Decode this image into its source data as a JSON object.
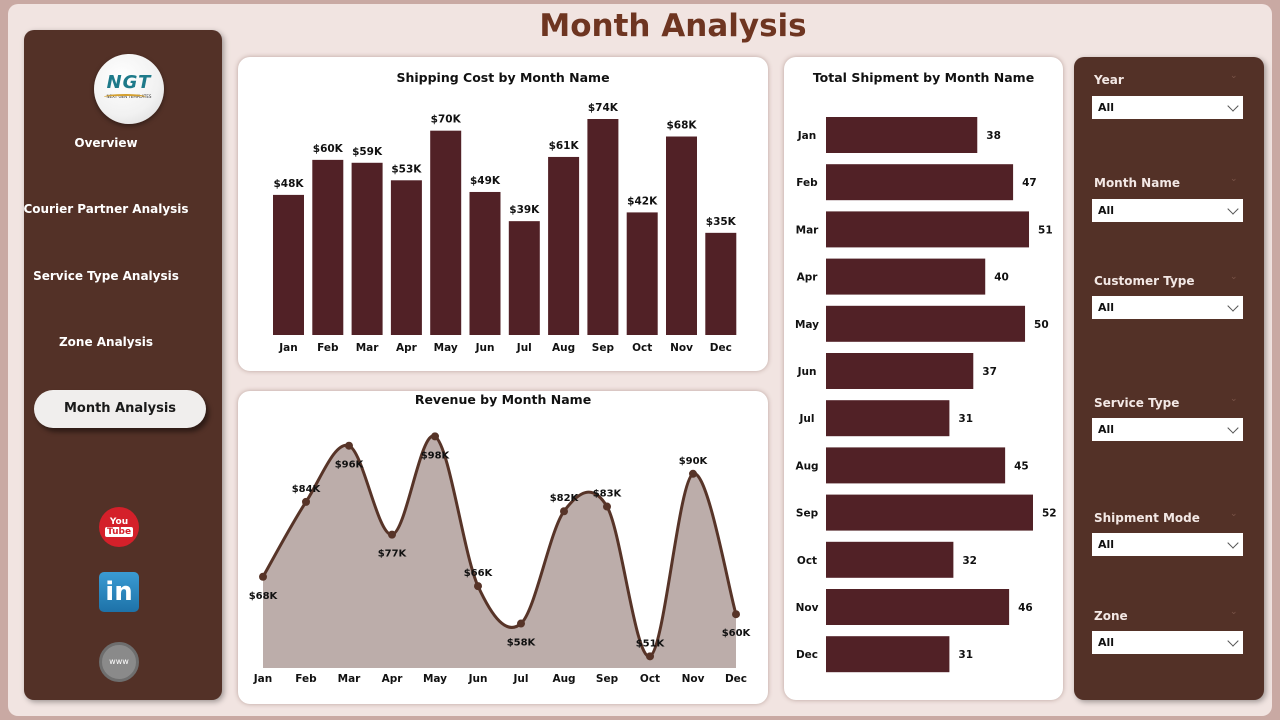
{
  "page": {
    "title": "Month Analysis"
  },
  "logo": {
    "main": "NGT",
    "sub": "NEXT GEN TEMPLATES"
  },
  "nav": {
    "items": [
      {
        "label": "Overview"
      },
      {
        "label": "Courier Partner Analysis"
      },
      {
        "label": "Service Type Analysis"
      },
      {
        "label": "Zone Analysis"
      }
    ],
    "active": "Month Analysis"
  },
  "social": {
    "youtube": "You Tube",
    "linkedin": "in",
    "website": "www"
  },
  "filters": [
    {
      "label": "Year",
      "value": "All"
    },
    {
      "label": "Month Name",
      "value": "All"
    },
    {
      "label": "Customer Type",
      "value": "All"
    },
    {
      "label": "Service Type",
      "value": "All"
    },
    {
      "label": "Shipment Mode",
      "value": "All"
    },
    {
      "label": "Zone",
      "value": "All"
    }
  ],
  "chart_data": [
    {
      "type": "bar",
      "title": "Shipping Cost by Month Name",
      "categories": [
        "Jan",
        "Feb",
        "Mar",
        "Apr",
        "May",
        "Jun",
        "Jul",
        "Aug",
        "Sep",
        "Oct",
        "Nov",
        "Dec"
      ],
      "values": [
        48,
        60,
        59,
        53,
        70,
        49,
        39,
        61,
        74,
        42,
        68,
        35
      ],
      "labels": [
        "$48K",
        "$60K",
        "$59K",
        "$53K",
        "$70K",
        "$49K",
        "$39K",
        "$61K",
        "$74K",
        "$42K",
        "$68K",
        "$35K"
      ],
      "unit": "thousands USD",
      "xlabel": "",
      "ylabel": "",
      "ylim": [
        0,
        74
      ],
      "color": "#512126"
    },
    {
      "type": "area",
      "title": "Revenue by Month Name",
      "categories": [
        "Jan",
        "Feb",
        "Mar",
        "Apr",
        "May",
        "Jun",
        "Jul",
        "Aug",
        "Sep",
        "Oct",
        "Nov",
        "Dec"
      ],
      "values": [
        68,
        84,
        96,
        77,
        98,
        66,
        58,
        82,
        83,
        51,
        90,
        60
      ],
      "labels": [
        "$68K",
        "$84K",
        "$96K",
        "$77K",
        "$98K",
        "$66K",
        "$58K",
        "$82K",
        "$83K",
        "$51K",
        "$90K",
        "$60K"
      ],
      "unit": "thousands USD",
      "xlabel": "",
      "ylabel": "",
      "ylim": [
        50,
        100
      ],
      "line_color": "#573428",
      "fill_color": "#bcadaa"
    },
    {
      "type": "bar",
      "orientation": "horizontal",
      "title": "Total Shipment by Month Name",
      "categories": [
        "Jan",
        "Feb",
        "Mar",
        "Apr",
        "May",
        "Jun",
        "Jul",
        "Aug",
        "Sep",
        "Oct",
        "Nov",
        "Dec"
      ],
      "values": [
        38,
        47,
        51,
        40,
        50,
        37,
        31,
        45,
        52,
        32,
        46,
        31
      ],
      "xlabel": "",
      "ylabel": "",
      "xlim": [
        0,
        52
      ],
      "color": "#512126"
    }
  ]
}
